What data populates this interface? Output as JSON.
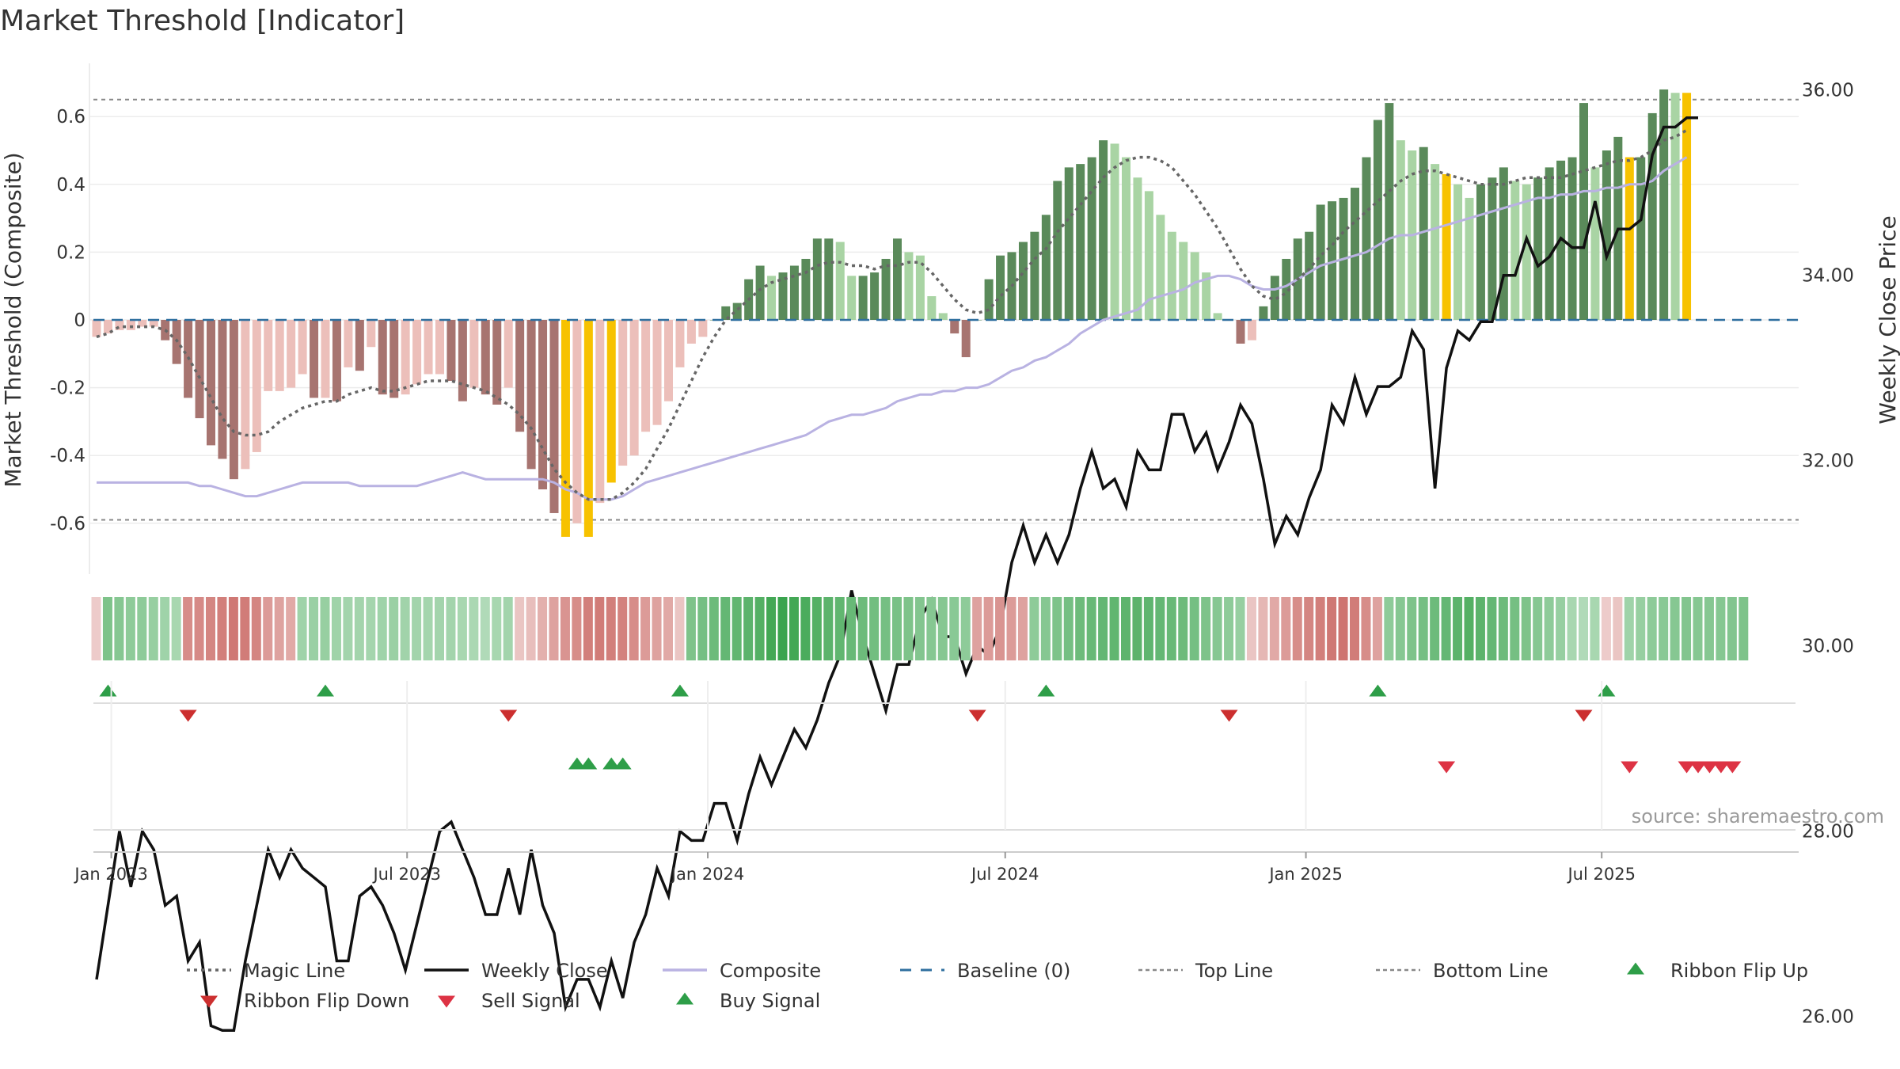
{
  "title": "Market Threshold [Indicator]",
  "source": "source: sharemaestro.com",
  "colors": {
    "magic": "#666666",
    "close": "#111111",
    "composite": "#b9b2e2",
    "baseline": "#2f6f9f",
    "refline": "#888888",
    "highlight": "#f7c200",
    "pos_strong": "#5a8a5a",
    "pos_weak": "#a9d4a4",
    "neg_strong": "#a77470",
    "neg_weak": "#ecbfba",
    "up_marker": "#2e9e48",
    "down_marker": "#cc2f2f",
    "sell_marker": "#dd3344"
  },
  "chart_data": {
    "type": "bar+line",
    "x_start": "2022-12-23",
    "x_step_days": 7,
    "xticks": [
      "Jan 2023",
      "Jul 2023",
      "Jan 2024",
      "Jul 2024",
      "Jan 2025",
      "Jul 2025"
    ],
    "left_axis": {
      "label": "Market Threshold (Composite)",
      "ylim": [
        -0.75,
        0.76
      ],
      "ticks": [
        "0.6",
        "0.4",
        "0.2",
        "0",
        "-0.2",
        "-0.4",
        "-0.6"
      ]
    },
    "right_axis": {
      "label": "Weekly Close Price",
      "ylim": [
        25.1,
        36.4
      ],
      "ticks": [
        "36.00",
        "34.00",
        "32.00",
        "30.00",
        "28.00",
        "26.00"
      ]
    },
    "top_line": 0.65,
    "bottom_line": -0.59,
    "composite_bars": [
      -0.05,
      -0.04,
      -0.03,
      -0.03,
      -0.02,
      -0.02,
      -0.06,
      -0.13,
      -0.23,
      -0.29,
      -0.37,
      -0.41,
      -0.47,
      -0.44,
      -0.39,
      -0.21,
      -0.21,
      -0.2,
      -0.16,
      -0.23,
      -0.23,
      -0.24,
      -0.14,
      -0.15,
      -0.08,
      -0.22,
      -0.23,
      -0.22,
      -0.19,
      -0.16,
      -0.16,
      -0.18,
      -0.24,
      -0.2,
      -0.22,
      -0.25,
      -0.2,
      -0.33,
      -0.44,
      -0.5,
      -0.57,
      -0.64,
      -0.6,
      -0.64,
      -0.54,
      -0.48,
      -0.43,
      -0.4,
      -0.33,
      -0.31,
      -0.24,
      -0.14,
      -0.07,
      -0.05,
      0.0,
      0.04,
      0.05,
      0.12,
      0.16,
      0.13,
      0.14,
      0.16,
      0.18,
      0.24,
      0.24,
      0.23,
      0.13,
      0.13,
      0.14,
      0.18,
      0.24,
      0.2,
      0.19,
      0.07,
      0.02,
      -0.04,
      -0.11,
      0.0,
      0.12,
      0.19,
      0.2,
      0.23,
      0.26,
      0.31,
      0.41,
      0.45,
      0.46,
      0.48,
      0.53,
      0.52,
      0.48,
      0.42,
      0.38,
      0.31,
      0.26,
      0.23,
      0.2,
      0.14,
      0.02,
      0.0,
      -0.07,
      -0.06,
      0.04,
      0.13,
      0.18,
      0.24,
      0.26,
      0.34,
      0.35,
      0.36,
      0.39,
      0.48,
      0.59,
      0.64,
      0.53,
      0.5,
      0.51,
      0.46,
      0.43,
      0.4,
      0.36,
      0.4,
      0.42,
      0.45,
      0.41,
      0.4,
      0.42,
      0.45,
      0.47,
      0.48,
      0.64,
      0.45,
      0.5,
      0.54,
      0.48,
      0.48,
      0.61,
      0.68,
      0.67,
      0.67
    ],
    "highlight_bars": [
      41,
      43,
      45,
      118,
      134,
      139,
      140,
      141
    ],
    "magic_line": [
      -0.05,
      -0.04,
      -0.02,
      -0.02,
      -0.02,
      -0.02,
      -0.03,
      -0.06,
      -0.11,
      -0.17,
      -0.23,
      -0.29,
      -0.33,
      -0.34,
      -0.34,
      -0.33,
      -0.3,
      -0.28,
      -0.26,
      -0.25,
      -0.24,
      -0.24,
      -0.22,
      -0.21,
      -0.2,
      -0.21,
      -0.21,
      -0.2,
      -0.19,
      -0.18,
      -0.18,
      -0.18,
      -0.19,
      -0.2,
      -0.21,
      -0.23,
      -0.25,
      -0.28,
      -0.32,
      -0.38,
      -0.44,
      -0.48,
      -0.51,
      -0.53,
      -0.53,
      -0.53,
      -0.51,
      -0.48,
      -0.44,
      -0.38,
      -0.32,
      -0.25,
      -0.18,
      -0.11,
      -0.05,
      0.0,
      0.03,
      0.06,
      0.09,
      0.11,
      0.12,
      0.13,
      0.14,
      0.16,
      0.17,
      0.17,
      0.16,
      0.16,
      0.15,
      0.16,
      0.16,
      0.17,
      0.17,
      0.14,
      0.1,
      0.06,
      0.03,
      0.02,
      0.03,
      0.07,
      0.1,
      0.14,
      0.18,
      0.21,
      0.26,
      0.3,
      0.34,
      0.38,
      0.42,
      0.45,
      0.47,
      0.48,
      0.48,
      0.47,
      0.45,
      0.41,
      0.37,
      0.32,
      0.27,
      0.21,
      0.15,
      0.1,
      0.07,
      0.06,
      0.08,
      0.12,
      0.15,
      0.19,
      0.22,
      0.26,
      0.29,
      0.32,
      0.35,
      0.38,
      0.41,
      0.43,
      0.44,
      0.44,
      0.43,
      0.42,
      0.41,
      0.4,
      0.4,
      0.4,
      0.41,
      0.42,
      0.42,
      0.42,
      0.42,
      0.43,
      0.44,
      0.45,
      0.46,
      0.47,
      0.47,
      0.48,
      0.5,
      0.53,
      0.54,
      0.56
    ],
    "composite_line": [
      -0.48,
      -0.48,
      -0.48,
      -0.48,
      -0.48,
      -0.48,
      -0.48,
      -0.48,
      -0.48,
      -0.49,
      -0.49,
      -0.5,
      -0.51,
      -0.52,
      -0.52,
      -0.51,
      -0.5,
      -0.49,
      -0.48,
      -0.48,
      -0.48,
      -0.48,
      -0.48,
      -0.49,
      -0.49,
      -0.49,
      -0.49,
      -0.49,
      -0.49,
      -0.48,
      -0.47,
      -0.46,
      -0.45,
      -0.46,
      -0.47,
      -0.47,
      -0.47,
      -0.47,
      -0.47,
      -0.47,
      -0.48,
      -0.5,
      -0.51,
      -0.53,
      -0.53,
      -0.53,
      -0.52,
      -0.5,
      -0.48,
      -0.47,
      -0.46,
      -0.45,
      -0.44,
      -0.43,
      -0.42,
      -0.41,
      -0.4,
      -0.39,
      -0.38,
      -0.37,
      -0.36,
      -0.35,
      -0.34,
      -0.32,
      -0.3,
      -0.29,
      -0.28,
      -0.28,
      -0.27,
      -0.26,
      -0.24,
      -0.23,
      -0.22,
      -0.22,
      -0.21,
      -0.21,
      -0.2,
      -0.2,
      -0.19,
      -0.17,
      -0.15,
      -0.14,
      -0.12,
      -0.11,
      -0.09,
      -0.07,
      -0.04,
      -0.02,
      0.0,
      0.01,
      0.02,
      0.03,
      0.06,
      0.07,
      0.08,
      0.09,
      0.11,
      0.12,
      0.13,
      0.13,
      0.12,
      0.1,
      0.09,
      0.09,
      0.1,
      0.12,
      0.14,
      0.16,
      0.17,
      0.18,
      0.19,
      0.2,
      0.22,
      0.24,
      0.25,
      0.25,
      0.26,
      0.27,
      0.28,
      0.29,
      0.3,
      0.31,
      0.32,
      0.33,
      0.34,
      0.35,
      0.36,
      0.36,
      0.37,
      0.37,
      0.38,
      0.38,
      0.39,
      0.39,
      0.4,
      0.4,
      0.41,
      0.44,
      0.46,
      0.48
    ],
    "weekly_close": [
      26.4,
      27.2,
      28.0,
      27.4,
      28.0,
      27.8,
      27.2,
      27.3,
      26.6,
      26.8,
      25.9,
      25.85,
      25.85,
      26.6,
      27.2,
      27.8,
      27.5,
      27.8,
      27.6,
      27.5,
      27.4,
      26.6,
      26.6,
      27.3,
      27.4,
      27.2,
      26.9,
      26.5,
      27.0,
      27.5,
      28.0,
      28.1,
      27.8,
      27.5,
      27.1,
      27.1,
      27.6,
      27.1,
      27.8,
      27.2,
      26.9,
      26.1,
      26.4,
      26.4,
      26.1,
      26.6,
      26.2,
      26.8,
      27.1,
      27.6,
      27.3,
      28.0,
      27.9,
      27.9,
      28.3,
      28.3,
      27.9,
      28.4,
      28.8,
      28.5,
      28.8,
      29.1,
      28.9,
      29.2,
      29.6,
      29.9,
      30.6,
      30.1,
      29.7,
      29.3,
      29.8,
      29.8,
      30.3,
      30.5,
      30.1,
      30.1,
      29.7,
      30.0,
      29.9,
      30.2,
      30.9,
      31.3,
      30.9,
      31.2,
      30.9,
      31.2,
      31.7,
      32.1,
      31.7,
      31.8,
      31.5,
      32.1,
      31.9,
      31.9,
      32.5,
      32.5,
      32.1,
      32.3,
      31.9,
      32.2,
      32.6,
      32.4,
      31.8,
      31.1,
      31.4,
      31.2,
      31.6,
      31.9,
      32.6,
      32.4,
      32.9,
      32.5,
      32.8,
      32.8,
      32.9,
      33.4,
      33.2,
      31.7,
      33.0,
      33.4,
      33.3,
      33.5,
      33.5,
      34.0,
      34.0,
      34.4,
      34.1,
      34.2,
      34.4,
      34.3,
      34.3,
      34.8,
      34.2,
      34.5,
      34.5,
      34.6,
      35.3,
      35.6,
      35.6,
      35.7,
      35.7
    ],
    "ribbon": [
      -0.15,
      0.55,
      0.5,
      0.45,
      0.45,
      0.4,
      0.35,
      0.3,
      -0.6,
      -0.62,
      -0.65,
      -0.7,
      -0.75,
      -0.72,
      -0.65,
      -0.5,
      -0.45,
      -0.4,
      0.35,
      0.38,
      0.4,
      0.35,
      0.33,
      0.33,
      0.32,
      0.35,
      0.38,
      0.34,
      0.33,
      0.32,
      0.33,
      0.33,
      0.3,
      0.28,
      0.25,
      0.3,
      0.33,
      -0.2,
      -0.25,
      -0.35,
      -0.45,
      -0.55,
      -0.6,
      -0.7,
      -0.72,
      -0.7,
      -0.68,
      -0.6,
      -0.5,
      -0.45,
      -0.4,
      -0.2,
      0.55,
      0.6,
      0.65,
      0.7,
      0.72,
      0.75,
      0.8,
      0.9,
      0.95,
      0.9,
      0.85,
      0.8,
      0.75,
      0.72,
      0.68,
      0.65,
      0.62,
      0.6,
      0.58,
      0.55,
      0.52,
      0.5,
      0.5,
      0.48,
      0.45,
      -0.45,
      -0.5,
      -0.55,
      -0.5,
      -0.45,
      0.45,
      0.5,
      0.55,
      0.6,
      0.65,
      0.68,
      0.7,
      0.72,
      0.74,
      0.75,
      0.73,
      0.7,
      0.68,
      0.65,
      0.6,
      0.55,
      0.5,
      0.45,
      0.4,
      -0.2,
      -0.3,
      -0.4,
      -0.5,
      -0.6,
      -0.65,
      -0.7,
      -0.75,
      -0.78,
      -0.72,
      -0.6,
      -0.45,
      0.45,
      0.5,
      0.55,
      0.6,
      0.65,
      0.7,
      0.75,
      0.8,
      0.75,
      0.7,
      0.65,
      0.6,
      0.55,
      0.5,
      0.45,
      0.4,
      0.3,
      0.25,
      0.3,
      -0.15,
      -0.2,
      0.35,
      0.4,
      0.45,
      0.48,
      0.5,
      0.52,
      0.5,
      0.5,
      0.5,
      0.52,
      0.55
    ],
    "ribbon_flip_up": [
      1,
      20,
      51,
      83,
      112,
      132
    ],
    "ribbon_flip_down": [
      8,
      36,
      77,
      99,
      130
    ],
    "buy_signal": [
      42,
      43,
      45,
      46
    ],
    "sell_signal": [
      118,
      134,
      139,
      140,
      141,
      142,
      143
    ],
    "legend": [
      {
        "label": "Magic Line",
        "kind": "dotted"
      },
      {
        "label": "Weekly Close",
        "kind": "solid"
      },
      {
        "label": "Composite",
        "kind": "lavender"
      },
      {
        "label": "Baseline (0)",
        "kind": "dashed"
      },
      {
        "label": "Top Line",
        "kind": "finedash"
      },
      {
        "label": "Bottom Line",
        "kind": "finedash"
      },
      {
        "label": "Ribbon Flip Up",
        "kind": "up"
      },
      {
        "label": "Ribbon Flip Down",
        "kind": "down"
      },
      {
        "label": "Sell Signal",
        "kind": "sell"
      },
      {
        "label": "Buy Signal",
        "kind": "buy"
      }
    ],
    "legend_placement": "bottom"
  }
}
